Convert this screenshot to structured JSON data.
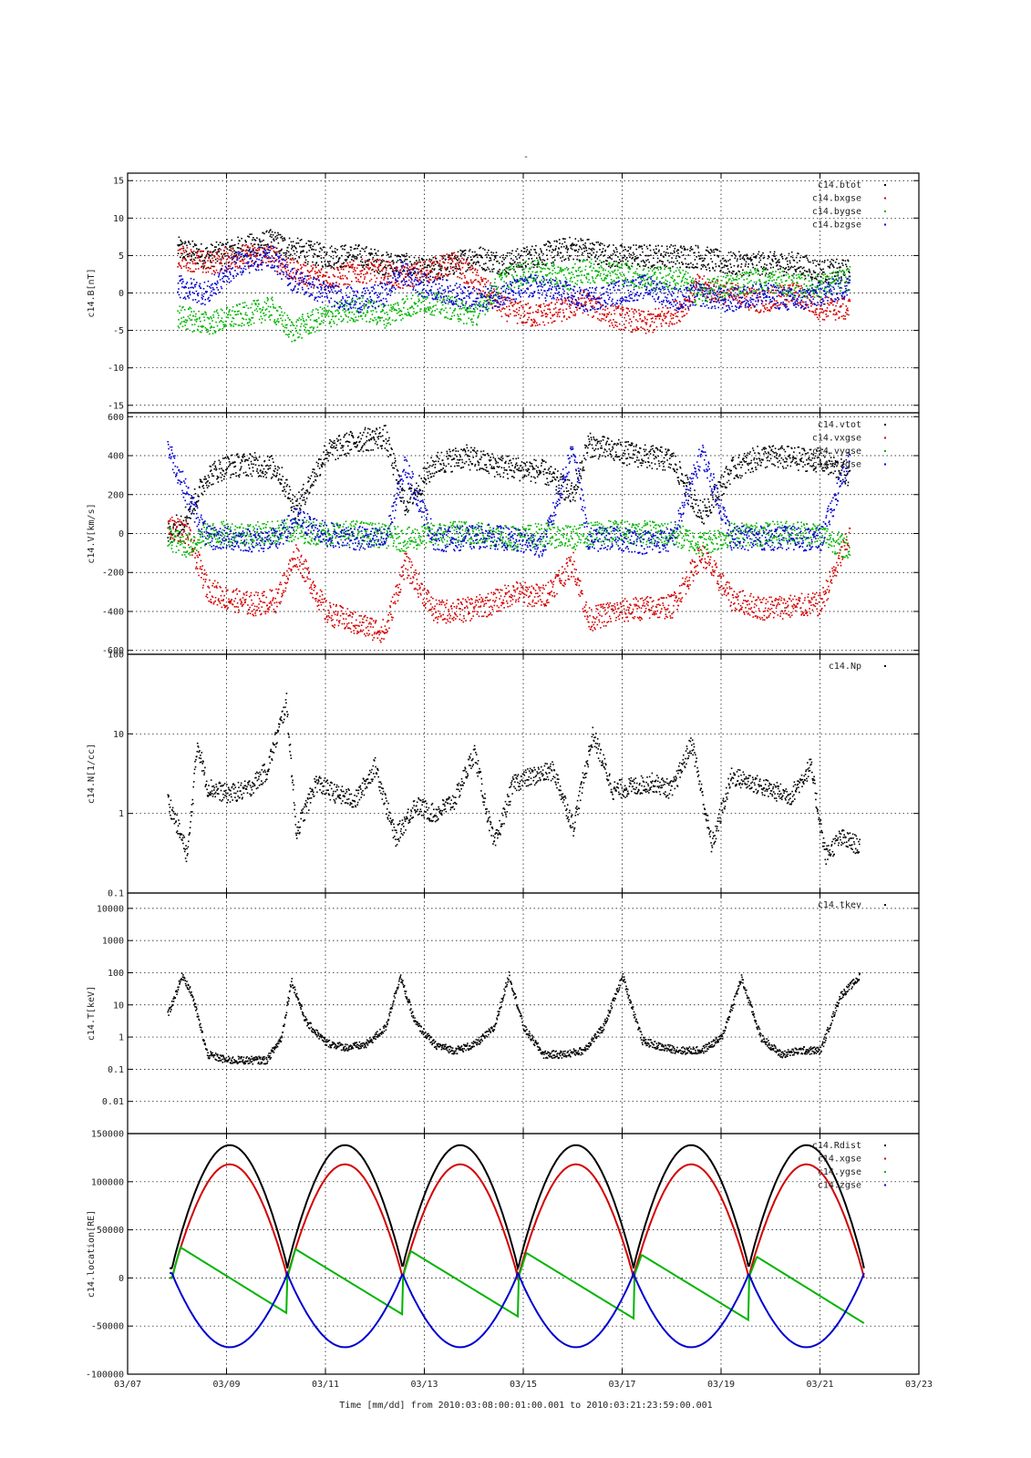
{
  "figure": {
    "title_mark": "-",
    "xlabel": "Time [mm/dd]  from 2010:03:08:00:01:00.001  to  2010:03:21:23:59:00.001",
    "x_ticks": [
      "03/07",
      "03/09",
      "03/11",
      "03/13",
      "03/15",
      "03/17",
      "03/19",
      "03/21",
      "03/23"
    ],
    "x_range_days": [
      0,
      16
    ]
  },
  "colors": {
    "black": "#000000",
    "red": "#d40000",
    "green": "#00b400",
    "blue": "#0000d0"
  },
  "chart_data": [
    {
      "type": "scatter",
      "ylabel": "c14.B[nT]",
      "ylim": [
        -16,
        16
      ],
      "scale": "linear",
      "ticks": [
        15,
        10,
        5,
        0,
        -5,
        -10,
        -15
      ],
      "tick_labels": [
        "15",
        "10",
        "5",
        "0",
        "-5",
        "-10",
        "-15"
      ],
      "legend_position": "top-right",
      "series": [
        {
          "name": "c14.btot",
          "color": "black",
          "x": [
            1.0,
            1.6,
            2.2,
            2.9,
            3.3,
            4.0,
            4.7,
            5.2,
            5.5,
            6.0,
            6.6,
            7.0,
            7.6,
            8.2,
            8.9,
            9.2,
            9.8,
            10.5,
            11.2,
            11.5,
            12.1,
            12.8,
            13.5,
            14.0,
            14.6
          ],
          "y": [
            6,
            5,
            6,
            7,
            6,
            5,
            5,
            4,
            4,
            3,
            4,
            5,
            4,
            5,
            6,
            6,
            5,
            5,
            5,
            5,
            4,
            4,
            4,
            3,
            3
          ]
        },
        {
          "name": "c14.bxgse",
          "color": "red",
          "x": [
            1.0,
            1.6,
            2.2,
            2.9,
            3.3,
            4.0,
            4.7,
            5.2,
            5.5,
            6.0,
            6.6,
            7.0,
            7.6,
            8.2,
            8.9,
            9.2,
            9.8,
            10.5,
            11.2,
            11.5,
            12.1,
            12.8,
            13.5,
            14.0,
            14.6
          ],
          "y": [
            5,
            4,
            5,
            5,
            3,
            2,
            3,
            3,
            2,
            3,
            4,
            2,
            -2,
            -3,
            -2,
            -1,
            -3,
            -4,
            -2,
            1,
            0,
            -1,
            0,
            -2,
            -2
          ]
        },
        {
          "name": "c14.bygse",
          "color": "green",
          "x": [
            1.0,
            1.6,
            2.2,
            2.9,
            3.3,
            4.0,
            4.7,
            5.2,
            5.5,
            6.0,
            6.6,
            7.0,
            7.6,
            8.2,
            8.9,
            9.2,
            9.8,
            10.5,
            11.2,
            11.5,
            12.1,
            12.8,
            13.5,
            14.0,
            14.6
          ],
          "y": [
            -3,
            -4,
            -3,
            -2,
            -5,
            -3,
            -2,
            -3,
            -2,
            -1,
            -2,
            -3,
            2,
            3,
            2,
            3,
            3,
            2,
            2,
            0,
            1,
            2,
            1,
            1,
            2
          ]
        },
        {
          "name": "c14.bzgse",
          "color": "blue",
          "x": [
            1.0,
            1.6,
            2.2,
            2.9,
            3.3,
            4.0,
            4.7,
            5.2,
            5.5,
            6.0,
            6.6,
            7.0,
            7.6,
            8.2,
            8.9,
            9.2,
            9.8,
            10.5,
            11.2,
            11.5,
            12.1,
            12.8,
            13.5,
            14.0,
            14.6
          ],
          "y": [
            1,
            0,
            4,
            5,
            2,
            0,
            -1,
            0,
            3,
            1,
            0,
            -1,
            0,
            1,
            0,
            -1,
            0,
            1,
            -1,
            0,
            -1,
            0,
            -1,
            0,
            1
          ]
        }
      ]
    },
    {
      "type": "scatter",
      "ylabel": "c14.V[km/s]",
      "ylim": [
        -620,
        620
      ],
      "scale": "linear",
      "ticks": [
        600,
        400,
        200,
        0,
        -200,
        -400,
        -600
      ],
      "tick_labels": [
        "600",
        "400",
        "200",
        "0",
        "-200",
        "-400",
        "-600"
      ],
      "legend_position": "top-right",
      "series": [
        {
          "name": "c14.vtot",
          "color": "black",
          "x": [
            0.8,
            1.2,
            1.6,
            2.0,
            2.5,
            3.0,
            3.4,
            4.0,
            4.6,
            5.2,
            5.6,
            6.2,
            6.8,
            7.3,
            7.8,
            8.4,
            9.0,
            9.3,
            9.8,
            10.4,
            11.0,
            11.6,
            12.2,
            12.8,
            13.4,
            14.0,
            14.6
          ],
          "y": [
            0,
            100,
            300,
            350,
            360,
            340,
            130,
            420,
            480,
            500,
            150,
            360,
            400,
            360,
            340,
            320,
            200,
            460,
            430,
            400,
            380,
            100,
            330,
            400,
            390,
            380,
            300
          ]
        },
        {
          "name": "c14.vxgse",
          "color": "red",
          "x": [
            0.8,
            1.2,
            1.6,
            2.0,
            2.5,
            3.0,
            3.4,
            4.0,
            4.6,
            5.2,
            5.6,
            6.2,
            6.8,
            7.3,
            7.8,
            8.4,
            9.0,
            9.3,
            9.8,
            10.4,
            11.0,
            11.6,
            12.2,
            12.8,
            13.4,
            14.0,
            14.6
          ],
          "y": [
            50,
            0,
            -280,
            -330,
            -360,
            -340,
            -100,
            -400,
            -460,
            -500,
            -150,
            -400,
            -390,
            -360,
            -300,
            -320,
            -150,
            -440,
            -400,
            -380,
            -370,
            -100,
            -330,
            -380,
            -370,
            -360,
            0
          ]
        },
        {
          "name": "c14.vygse",
          "color": "green",
          "x": [
            0.8,
            1.2,
            1.6,
            2.0,
            2.5,
            3.0,
            3.4,
            4.0,
            4.6,
            5.2,
            5.6,
            6.2,
            6.8,
            7.3,
            7.8,
            8.4,
            9.0,
            9.3,
            9.8,
            10.4,
            11.0,
            11.6,
            12.2,
            12.8,
            13.4,
            14.0,
            14.6
          ],
          "y": [
            -20,
            -60,
            0,
            5,
            0,
            10,
            20,
            0,
            10,
            -10,
            -30,
            0,
            10,
            0,
            -20,
            0,
            -20,
            0,
            10,
            10,
            0,
            -50,
            0,
            0,
            10,
            0,
            -80
          ]
        },
        {
          "name": "c14.vzgse",
          "color": "blue",
          "x": [
            0.8,
            1.2,
            1.6,
            2.0,
            2.5,
            3.0,
            3.4,
            4.0,
            4.6,
            5.2,
            5.6,
            6.2,
            6.8,
            7.3,
            7.8,
            8.4,
            9.0,
            9.3,
            9.8,
            10.4,
            11.0,
            11.6,
            12.2,
            12.8,
            13.4,
            14.0,
            14.6
          ],
          "y": [
            450,
            200,
            -20,
            -20,
            -30,
            -30,
            80,
            0,
            -20,
            -30,
            350,
            -30,
            -20,
            -10,
            -30,
            -60,
            450,
            -30,
            -20,
            -40,
            -30,
            420,
            -20,
            -20,
            -20,
            -30,
            400
          ]
        }
      ]
    },
    {
      "type": "scatter",
      "ylabel": "c14.N[1/cc]",
      "ylim": [
        0.1,
        100
      ],
      "scale": "log",
      "ticks": [
        100,
        10,
        1,
        0.1
      ],
      "tick_labels": [
        "100",
        "10",
        "1",
        "0.1"
      ],
      "legend_position": "top-right",
      "series": [
        {
          "name": "c14.Np",
          "color": "black",
          "x": [
            0.8,
            1.0,
            1.2,
            1.4,
            1.6,
            2.0,
            2.4,
            2.8,
            3.2,
            3.4,
            3.8,
            4.2,
            4.6,
            5.0,
            5.4,
            5.8,
            6.2,
            6.6,
            7.0,
            7.4,
            7.8,
            8.2,
            8.6,
            9.0,
            9.4,
            9.8,
            10.2,
            10.6,
            11.0,
            11.4,
            11.8,
            12.2,
            12.6,
            13.0,
            13.4,
            13.8,
            14.1,
            14.4,
            14.8
          ],
          "y": [
            1.5,
            0.7,
            0.3,
            8,
            2.2,
            1.8,
            2.0,
            3.5,
            25,
            0.6,
            2.5,
            1.8,
            1.5,
            4,
            0.5,
            1.3,
            1.0,
            1.5,
            6,
            0.4,
            2.5,
            3.0,
            3.5,
            0.7,
            10,
            2.0,
            2.2,
            2.5,
            2.0,
            8,
            0.4,
            3.0,
            2.5,
            2.0,
            1.7,
            4,
            0.3,
            0.5,
            0.4
          ]
        }
      ]
    },
    {
      "type": "scatter",
      "ylabel": "c14.T[keV]",
      "ylim": [
        0.001,
        30000
      ],
      "scale": "log",
      "ticks": [
        10000,
        1000,
        100,
        10,
        1,
        0.1,
        0.01
      ],
      "tick_labels": [
        "10000",
        "1000",
        "100",
        "10",
        "1",
        "0.1",
        "0.01"
      ],
      "legend_position": "top-right",
      "series": [
        {
          "name": "c14.tkev",
          "color": "black",
          "x": [
            0.8,
            1.1,
            1.3,
            1.6,
            2.0,
            2.4,
            2.8,
            3.1,
            3.3,
            3.6,
            4.0,
            4.4,
            4.8,
            5.2,
            5.5,
            5.8,
            6.2,
            6.6,
            7.0,
            7.4,
            7.7,
            8.0,
            8.4,
            8.8,
            9.2,
            9.6,
            10.0,
            10.4,
            10.8,
            11.2,
            11.6,
            12.0,
            12.4,
            12.8,
            13.2,
            13.6,
            14.0,
            14.4,
            14.8
          ],
          "y": [
            5,
            90,
            20,
            0.3,
            0.2,
            0.2,
            0.2,
            1,
            60,
            3,
            0.7,
            0.5,
            0.6,
            2,
            80,
            3,
            0.6,
            0.4,
            0.6,
            2,
            90,
            2,
            0.3,
            0.3,
            0.4,
            2,
            80,
            0.8,
            0.5,
            0.4,
            0.4,
            1,
            70,
            1,
            0.3,
            0.4,
            0.4,
            20,
            80
          ]
        }
      ]
    },
    {
      "type": "line",
      "ylabel": "c14.location[RE]",
      "ylim": [
        -100000,
        150000
      ],
      "scale": "linear",
      "ticks": [
        150000,
        100000,
        50000,
        0,
        -50000,
        -100000
      ],
      "tick_labels": [
        "150000",
        "100000",
        "50000",
        "0",
        "-50000",
        "-100000"
      ],
      "legend_position": "top-right",
      "orbit_period_days": 2.33,
      "perigee_days": [
        0.9,
        3.23,
        5.56,
        7.9,
        10.23,
        12.56
      ],
      "series": [
        {
          "name": "c14.Rdist",
          "color": "black",
          "apogee": 138000,
          "perigee_value": 10000
        },
        {
          "name": "c14.xgse",
          "color": "red",
          "apogee": 118000,
          "perigee_value": 0
        },
        {
          "name": "c14.ygse",
          "color": "green",
          "peaks": [
            32000,
            30000,
            28000,
            26000,
            24000,
            22000
          ],
          "troughs": [
            -37000,
            -38000,
            -40000,
            -42000,
            -44000,
            -47000
          ]
        },
        {
          "name": "c14.zgse",
          "color": "blue",
          "min": -72000,
          "perigee_value": 5000
        }
      ]
    }
  ]
}
